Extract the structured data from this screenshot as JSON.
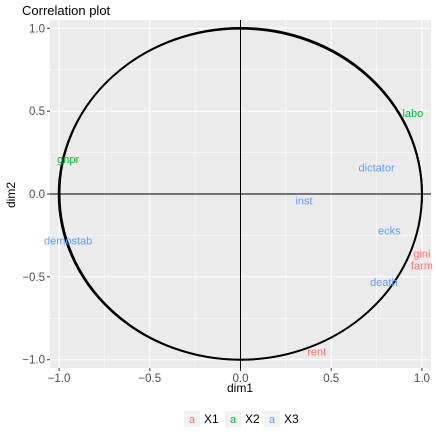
{
  "chart_data": {
    "type": "scatter",
    "title": "Correlation plot",
    "xlabel": "dim1",
    "ylabel": "dim2",
    "xlim": [
      -1.05,
      1.05
    ],
    "ylim": [
      -1.05,
      1.05
    ],
    "xticks": [
      -1.0,
      -0.5,
      0.0,
      0.5,
      1.0
    ],
    "yticks": [
      -1.0,
      -0.5,
      0.0,
      0.5,
      1.0
    ],
    "xtick_labels": [
      "−1.0",
      "−0.5",
      "0.0",
      "0.5",
      "1.0"
    ],
    "ytick_labels": [
      "−1.0",
      "−0.5",
      "0.0",
      "0.5",
      "1.0"
    ],
    "grid": true,
    "unit_circle": true,
    "reference_lines": {
      "x": 0,
      "y": 0
    },
    "legend": {
      "placement": "bottom",
      "key_glyph": "a",
      "entries": [
        {
          "name": "X1",
          "color": "#F8766D"
        },
        {
          "name": "X2",
          "color": "#00BA38"
        },
        {
          "name": "X3",
          "color": "#619CFF"
        }
      ]
    },
    "series": [
      {
        "name": "X1",
        "color": "#F8766D",
        "points": [
          {
            "label": "gini",
            "x": 1.0,
            "y": -0.36
          },
          {
            "label": "farm",
            "x": 1.0,
            "y": -0.43
          },
          {
            "label": "rent",
            "x": 0.42,
            "y": -0.95
          }
        ]
      },
      {
        "name": "X2",
        "color": "#00BA38",
        "points": [
          {
            "label": "labo",
            "x": 0.95,
            "y": 0.49
          },
          {
            "label": "gnpr",
            "x": -0.95,
            "y": 0.21
          }
        ]
      },
      {
        "name": "X3",
        "color": "#619CFF",
        "points": [
          {
            "label": "dictator",
            "x": 0.75,
            "y": 0.16
          },
          {
            "label": "inst",
            "x": 0.35,
            "y": -0.04
          },
          {
            "label": "demostab",
            "x": -0.95,
            "y": -0.28
          },
          {
            "label": "ecks",
            "x": 0.82,
            "y": -0.22
          },
          {
            "label": "death",
            "x": 0.79,
            "y": -0.53
          }
        ]
      }
    ]
  }
}
